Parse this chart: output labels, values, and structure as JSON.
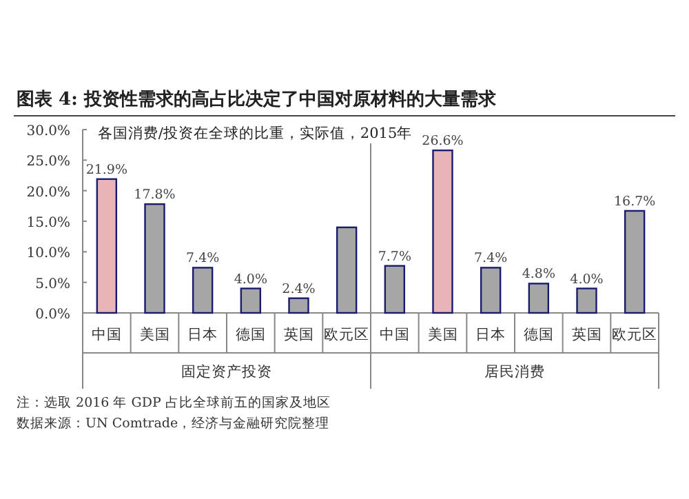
{
  "chart_data": {
    "type": "bar",
    "title": "图表 4:  投资性需求的高占比决定了中国对原材料的大量需求",
    "subtitle": "各国消费/投资在全球的比重，实际值，2015年",
    "categories": [
      "中国",
      "美国",
      "日本",
      "德国",
      "英国",
      "欧元区",
      "中国",
      "美国",
      "日本",
      "德国",
      "英国",
      "欧元区"
    ],
    "values": [
      21.9,
      17.8,
      7.4,
      4.0,
      2.4,
      14.0,
      7.7,
      26.6,
      7.4,
      4.8,
      4.0,
      16.7
    ],
    "value_labels": [
      "21.9%",
      "17.8%",
      "7.4%",
      "4.0%",
      "2.4%",
      null,
      "7.7%",
      "26.6%",
      "7.4%",
      "4.8%",
      "4.0%",
      "16.7%"
    ],
    "colors": [
      "#e8b4b8",
      "#a6a6a6",
      "#a6a6a6",
      "#a6a6a6",
      "#a6a6a6",
      "#a6a6a6",
      "#a6a6a6",
      "#e8b4b8",
      "#a6a6a6",
      "#a6a6a6",
      "#a6a6a6",
      "#a6a6a6"
    ],
    "ylim": [
      0,
      30
    ],
    "yticks": [
      {
        "value": 0,
        "label": "0.0%"
      },
      {
        "value": 5,
        "label": "5.0%"
      },
      {
        "value": 10,
        "label": "10.0%"
      },
      {
        "value": 15,
        "label": "15.0%"
      },
      {
        "value": 20,
        "label": "20.0%"
      },
      {
        "value": 25,
        "label": "25.0%"
      },
      {
        "value": 30,
        "label": "30.0%"
      }
    ],
    "grid": false,
    "annotations": [
      "固定资产投资",
      "居民消费",
      "注：选取 2016 年 GDP 占比全球前五的国家及地区",
      "数据来源：UN Comtrade，经济与金融研究院整理"
    ]
  }
}
